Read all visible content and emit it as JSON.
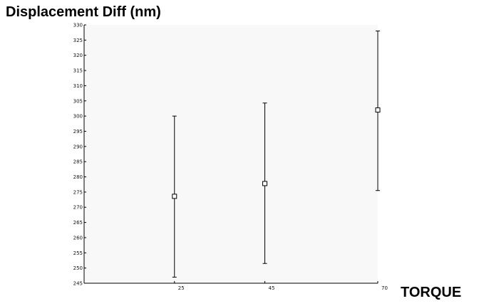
{
  "chart_data": {
    "type": "scatter",
    "title": "Displacement Diff (nm)",
    "xlabel": "TORQUE",
    "ylabel": "",
    "x_ticks": [
      25,
      45,
      70
    ],
    "y_ticks": [
      245,
      250,
      255,
      260,
      265,
      270,
      275,
      280,
      285,
      290,
      295,
      300,
      305,
      310,
      315,
      320,
      325,
      330
    ],
    "ylim": [
      245,
      330
    ],
    "xlim": [
      5,
      70
    ],
    "grid": false,
    "series": [
      {
        "x": [
          25,
          45,
          70
        ],
        "mean": [
          273.6,
          277.8,
          302
        ],
        "lower": [
          247,
          251.5,
          275.5
        ],
        "upper": [
          300,
          304.3,
          328
        ]
      }
    ],
    "colors": {
      "marks": "#000000",
      "background_plot": "#f8f8f8"
    }
  }
}
